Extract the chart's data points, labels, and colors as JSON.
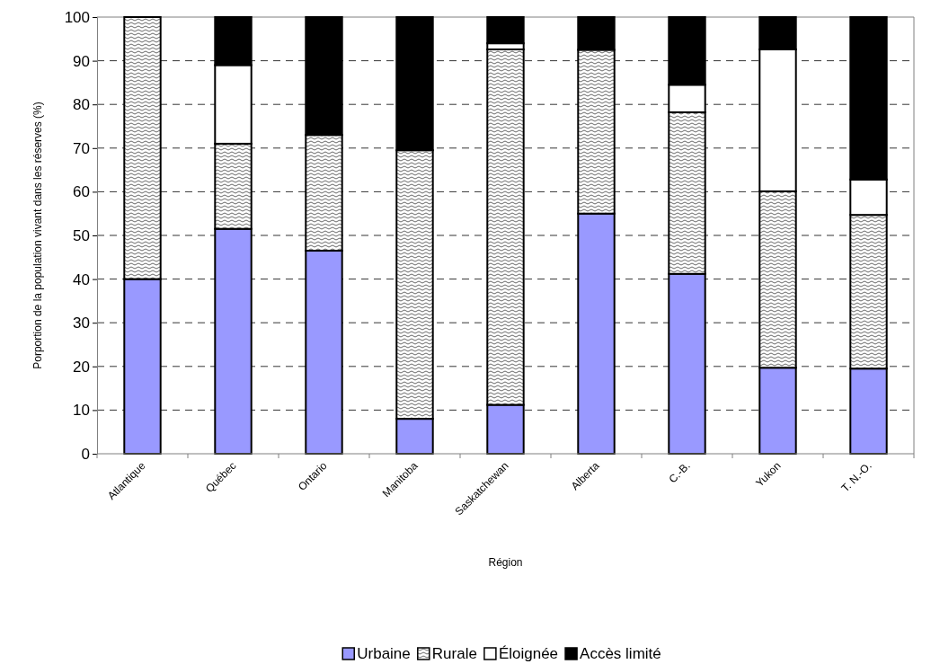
{
  "chart_data": {
    "type": "bar",
    "stacked": true,
    "xlabel": "Région",
    "ylabel": "Porportion de la population vivant dans les réserves (%)",
    "categories": [
      "Atlantique",
      "Québec",
      "Ontario",
      "Manitoba",
      "Saskatchewan",
      "Alberta",
      "C.-B.",
      "Yukon",
      "T. N.-O."
    ],
    "series": [
      {
        "name": "Urbaine",
        "color": "#9999ff",
        "values": [
          40,
          51.5,
          46.5,
          8,
          11.2,
          55,
          41.2,
          19.7,
          19.5
        ]
      },
      {
        "name": "Rurale",
        "color": "#000000",
        "values": [
          60,
          19.5,
          26.5,
          61.5,
          81.4,
          37.5,
          37,
          40.4,
          35.2
        ]
      },
      {
        "name": "Éloignée",
        "color": "#ffffff",
        "values": [
          0,
          18,
          0,
          0,
          1.4,
          0,
          6.3,
          32.5,
          8.1
        ]
      },
      {
        "name": "Accès limité",
        "color": "#000000",
        "values": [
          0,
          11,
          27,
          30.5,
          6,
          7.5,
          15.5,
          7.4,
          37.2
        ]
      }
    ],
    "ylim": [
      0,
      100
    ],
    "yticks": [
      0,
      10,
      20,
      30,
      40,
      50,
      60,
      70,
      80,
      90,
      100
    ],
    "grid": "y",
    "legend": "bottom"
  }
}
